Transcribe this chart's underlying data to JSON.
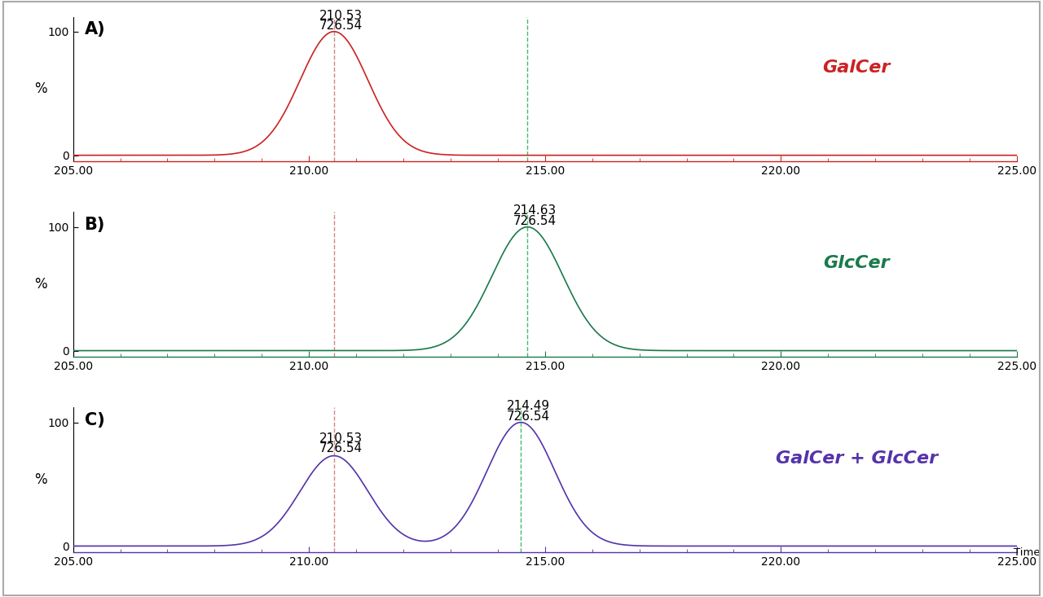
{
  "panel_labels": [
    "A)",
    "B)",
    "C)"
  ],
  "legend_labels": [
    "GalCer",
    "GlcCer",
    "GalCer + GlcCer"
  ],
  "panel_colors": [
    "#cc2222",
    "#1a7a4a",
    "#5533aa"
  ],
  "galcer_peak": 210.53,
  "glccer_peak": 214.63,
  "mix_peak1": 210.53,
  "mix_peak2": 214.49,
  "mix_peak1_height": 0.73,
  "mix_peak2_height": 1.0,
  "sigma_galcer": 0.72,
  "sigma_glccer": 0.75,
  "sigma_mix": 0.72,
  "red_dashed_x": 210.53,
  "green_dashed_x": 214.63,
  "green_dashed_x_C": 214.49,
  "xlim": [
    205.0,
    225.0
  ],
  "ylim": [
    -5,
    112
  ],
  "xticks": [
    205.0,
    210.0,
    215.0,
    220.0,
    225.0
  ],
  "yticks": [
    0,
    100
  ],
  "ytick_labels": [
    "0",
    "100"
  ],
  "xlabel_time": "Time",
  "ylabel": "%",
  "annot_A_line1": "210.53",
  "annot_A_line2": "726.54",
  "annot_B_line1": "214.63",
  "annot_B_line2": "726.54",
  "annot_C1_line1": "210.53",
  "annot_C1_line2": "726.54",
  "annot_C2_line1": "214.49",
  "annot_C2_line2": "726.54",
  "background": "#ffffff",
  "annotation_fontsize": 11,
  "panel_label_fontsize": 15,
  "legend_fontsize": 16,
  "tick_label_fontsize": 10,
  "ylabel_fontsize": 12
}
